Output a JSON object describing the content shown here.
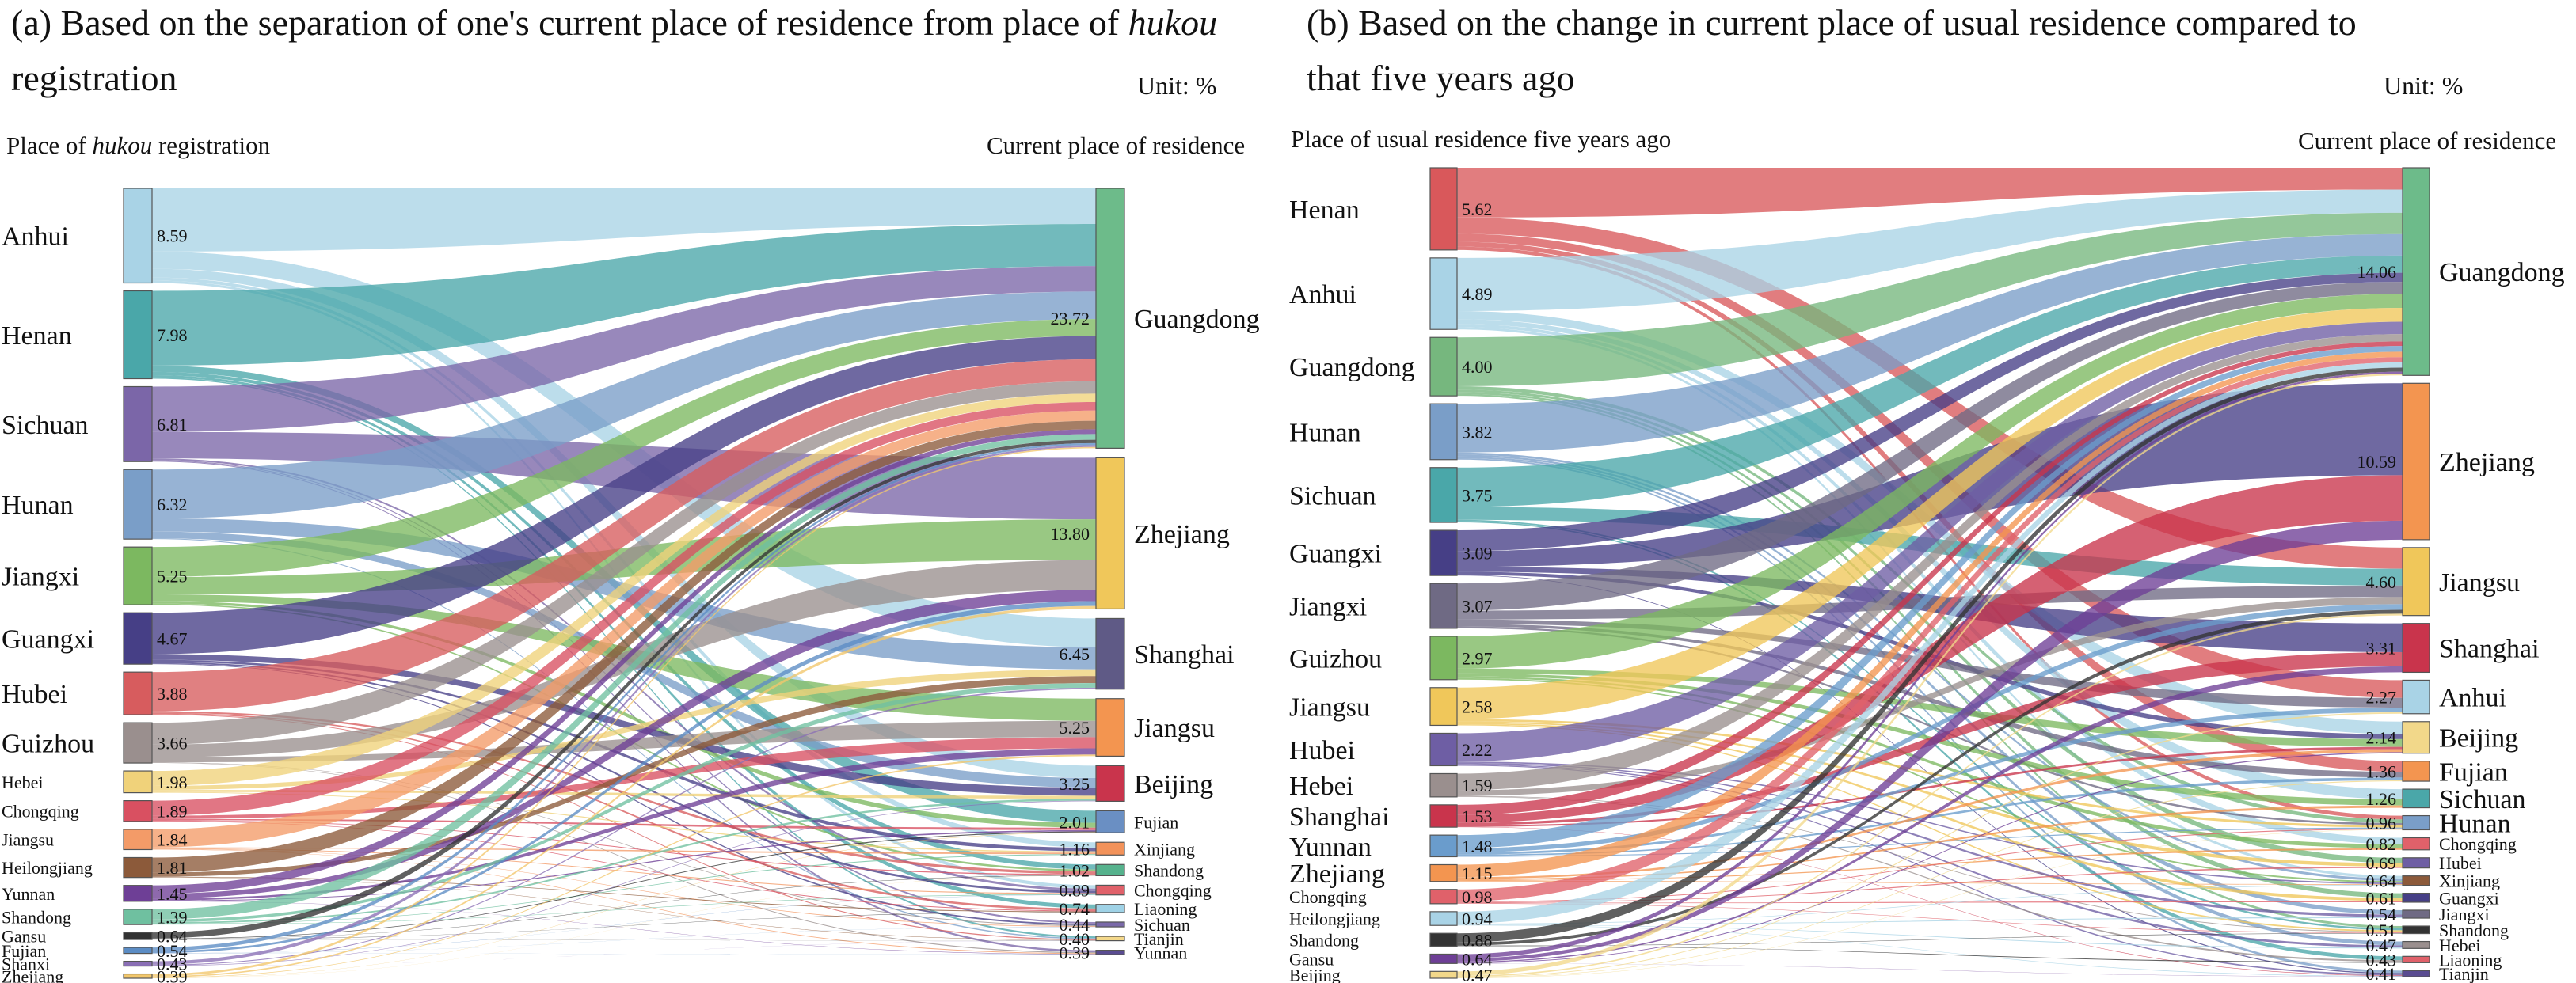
{
  "panel_a": {
    "title_part1": "(a) Based on the separation of one's current place of residence from place of ",
    "title_em": "hukou",
    "title_part2": " registration",
    "unit": "Unit: %",
    "left_header_part1": "Place of ",
    "left_header_em": "hukou",
    "left_header_part2": " registration",
    "right_header": "Current place of residence"
  },
  "panel_b": {
    "title": "(b) Based on the change in current place of usual residence compared to that five years ago",
    "unit": "Unit: %",
    "left_header": "Place of usual residence five years ago",
    "right_header": "Current place of residence"
  },
  "chart_data": [
    {
      "type": "sankey",
      "source_nodes": [
        {
          "name": "Anhui",
          "value": 8.59,
          "color": "#a9d3e6"
        },
        {
          "name": "Henan",
          "value": 7.98,
          "color": "#4aa7a9"
        },
        {
          "name": "Sichuan",
          "value": 6.81,
          "color": "#7b66a8"
        },
        {
          "name": "Hunan",
          "value": 6.32,
          "color": "#7a9ec8"
        },
        {
          "name": "Jiangxi",
          "value": 5.25,
          "color": "#7cb860"
        },
        {
          "name": "Guangxi",
          "value": 4.67,
          "color": "#463f86"
        },
        {
          "name": "Hubei",
          "value": 3.88,
          "color": "#d75c5e"
        },
        {
          "name": "Guizhou",
          "value": 3.66,
          "color": "#9a8f8e"
        },
        {
          "name": "Hebei",
          "value": 1.98,
          "color": "#f0d27a"
        },
        {
          "name": "Chongqing",
          "value": 1.89,
          "color": "#d95061"
        },
        {
          "name": "Jiangsu",
          "value": 1.84,
          "color": "#f39b68"
        },
        {
          "name": "Heilongjiang",
          "value": 1.81,
          "color": "#8c5a3a"
        },
        {
          "name": "Yunnan",
          "value": 1.45,
          "color": "#6e3f96"
        },
        {
          "name": "Shandong",
          "value": 1.39,
          "color": "#6fc0a0"
        },
        {
          "name": "Gansu",
          "value": 0.64,
          "color": "#333333"
        },
        {
          "name": "Fujian",
          "value": 0.54,
          "color": "#5b8cc4"
        },
        {
          "name": "Shanxi",
          "value": 0.43,
          "color": "#8a6fb5"
        },
        {
          "name": "Zhejiang",
          "value": 0.39,
          "color": "#f2c76b"
        }
      ],
      "target_nodes": [
        {
          "name": "Guangdong",
          "value": 23.72,
          "color": "#6dbb8a"
        },
        {
          "name": "Zhejiang",
          "value": 13.8,
          "color": "#f0c75a"
        },
        {
          "name": "Shanghai",
          "value": 6.45,
          "color": "#5f5a86"
        },
        {
          "name": "Jiangsu",
          "value": 5.25,
          "color": "#f39550"
        },
        {
          "name": "Beijing",
          "value": 3.25,
          "color": "#c9344c"
        },
        {
          "name": "Fujian",
          "value": 2.01,
          "color": "#6a8fc3"
        },
        {
          "name": "Xinjiang",
          "value": 1.16,
          "color": "#f2925a"
        },
        {
          "name": "Shandong",
          "value": 1.02,
          "color": "#56b28d"
        },
        {
          "name": "Chongqing",
          "value": 0.89,
          "color": "#e0616a"
        },
        {
          "name": "Liaoning",
          "value": 0.74,
          "color": "#9fd2e6"
        },
        {
          "name": "Sichuan",
          "value": 0.44,
          "color": "#7a69a8"
        },
        {
          "name": "Tianjin",
          "value": 0.4,
          "color": "#f4d88a"
        },
        {
          "name": "Yunnan",
          "value": 0.39,
          "color": "#5a4c91"
        }
      ]
    },
    {
      "type": "sankey",
      "source_nodes": [
        {
          "name": "Henan",
          "value": 5.62,
          "color": "#d9585b"
        },
        {
          "name": "Anhui",
          "value": 4.89,
          "color": "#a9d3e6"
        },
        {
          "name": "Guangdong",
          "value": 4.0,
          "color": "#76b77e"
        },
        {
          "name": "Hunan",
          "value": 3.82,
          "color": "#7a9ec8"
        },
        {
          "name": "Sichuan",
          "value": 3.75,
          "color": "#4aa7a9"
        },
        {
          "name": "Guangxi",
          "value": 3.09,
          "color": "#463f86"
        },
        {
          "name": "Jiangxi",
          "value": 3.07,
          "color": "#6f6a84"
        },
        {
          "name": "Guizhou",
          "value": 2.97,
          "color": "#7cb860"
        },
        {
          "name": "Jiangsu",
          "value": 2.58,
          "color": "#f0c75a"
        },
        {
          "name": "Hubei",
          "value": 2.22,
          "color": "#6e5ea4"
        },
        {
          "name": "Hebei",
          "value": 1.59,
          "color": "#9a8f8e"
        },
        {
          "name": "Shanghai",
          "value": 1.53,
          "color": "#c9344c"
        },
        {
          "name": "Yunnan",
          "value": 1.48,
          "color": "#6a9ccc"
        },
        {
          "name": "Zhejiang",
          "value": 1.15,
          "color": "#f39550"
        },
        {
          "name": "Chongqing",
          "value": 0.98,
          "color": "#e0616a"
        },
        {
          "name": "Heilongjiang",
          "value": 0.94,
          "color": "#a9d3e6"
        },
        {
          "name": "Shandong",
          "value": 0.88,
          "color": "#333333"
        },
        {
          "name": "Gansu",
          "value": 0.64,
          "color": "#6e3f96"
        },
        {
          "name": "Beijing",
          "value": 0.47,
          "color": "#f2d88a"
        }
      ],
      "target_nodes": [
        {
          "name": "Guangdong",
          "value": 14.06,
          "color": "#6dbb8a"
        },
        {
          "name": "Zhejiang",
          "value": 10.59,
          "color": "#f39550"
        },
        {
          "name": "Jiangsu",
          "value": 4.6,
          "color": "#f0c75a"
        },
        {
          "name": "Shanghai",
          "value": 3.31,
          "color": "#c9344c"
        },
        {
          "name": "Anhui",
          "value": 2.27,
          "color": "#a9d3e6"
        },
        {
          "name": "Beijing",
          "value": 2.14,
          "color": "#f2d88a"
        },
        {
          "name": "Fujian",
          "value": 1.36,
          "color": "#f39550"
        },
        {
          "name": "Sichuan",
          "value": 1.26,
          "color": "#4aa7a9"
        },
        {
          "name": "Hunan",
          "value": 0.96,
          "color": "#7a9ec8"
        },
        {
          "name": "Chongqing",
          "value": 0.82,
          "color": "#e0616a"
        },
        {
          "name": "Hubei",
          "value": 0.69,
          "color": "#6e5ea4"
        },
        {
          "name": "Xinjiang",
          "value": 0.64,
          "color": "#8c5a3a"
        },
        {
          "name": "Guangxi",
          "value": 0.61,
          "color": "#463f86"
        },
        {
          "name": "Jiangxi",
          "value": 0.54,
          "color": "#6f6a84"
        },
        {
          "name": "Shandong",
          "value": 0.51,
          "color": "#333333"
        },
        {
          "name": "Hebei",
          "value": 0.47,
          "color": "#9a8f8e"
        },
        {
          "name": "Liaoning",
          "value": 0.43,
          "color": "#e0616a"
        },
        {
          "name": "Tianjin",
          "value": 0.41,
          "color": "#5a4c91"
        }
      ]
    }
  ]
}
